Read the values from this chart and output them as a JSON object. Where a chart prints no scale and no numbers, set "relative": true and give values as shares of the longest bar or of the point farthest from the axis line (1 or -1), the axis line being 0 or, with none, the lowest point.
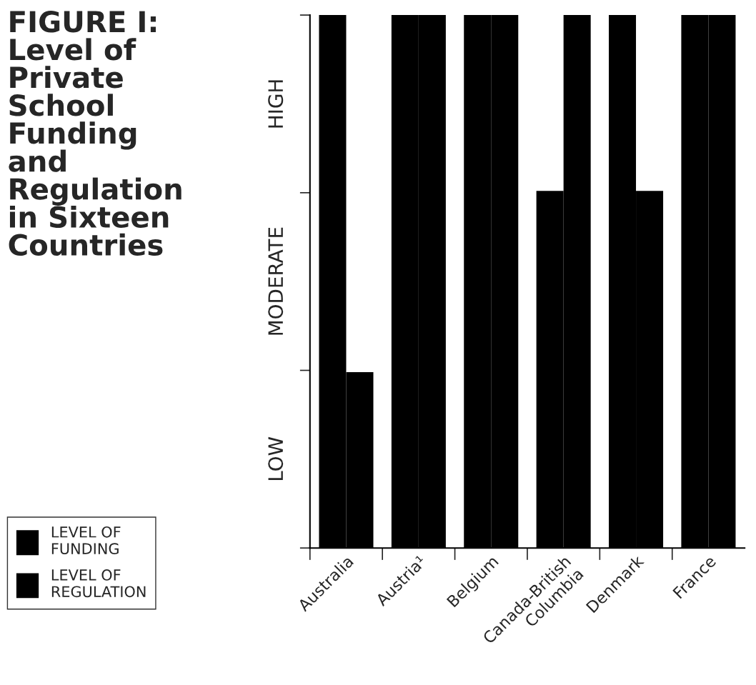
{
  "chart_data": {
    "type": "bar",
    "title": "FIGURE I:\nLevel of\nPrivate\nSchool\nFunding\nand\nRegulation\nin Sixteen\nCountries",
    "categories": [
      "Australia",
      "Austria¹",
      "Belgium",
      "Canada-British\nColumbia",
      "Denmark",
      "France"
    ],
    "series": [
      {
        "name": "LEVEL OF\nFUNDING",
        "color": "#000000",
        "values": [
          1,
          1,
          1,
          0.67,
          1,
          1
        ]
      },
      {
        "name": "LEVEL OF\nREGULATION",
        "color": "#000000",
        "values": [
          0.33,
          1,
          1,
          1,
          0.67,
          1
        ]
      }
    ],
    "relative": true,
    "annotations": [
      "LOW",
      "MODERATE",
      "HIGH"
    ],
    "legend": "left",
    "grid": false
  }
}
